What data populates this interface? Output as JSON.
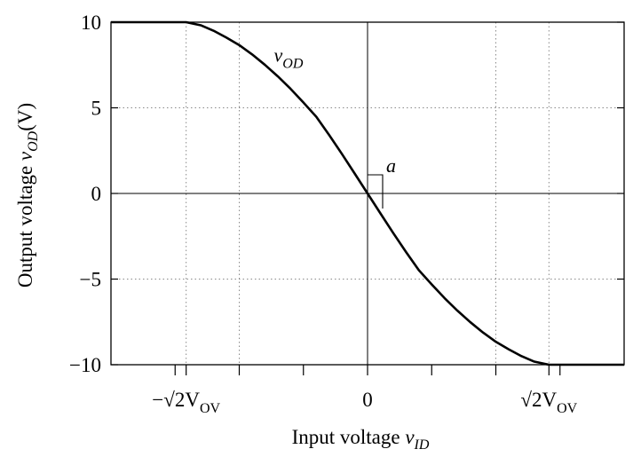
{
  "chart_data": {
    "type": "line",
    "xlabel": {
      "text": "Input voltage ",
      "var": "v",
      "sub": "ID"
    },
    "ylabel": {
      "text": "Output voltage ",
      "var": "v",
      "sub": "OD",
      "unit": "(V)"
    },
    "x_units": "V_OV",
    "xlim": [
      -2.0,
      2.0
    ],
    "ylim": [
      -10,
      10
    ],
    "yticks": [
      {
        "value": 10,
        "label": "10"
      },
      {
        "value": 5,
        "label": "5"
      },
      {
        "value": 0,
        "label": "0"
      },
      {
        "value": -5,
        "label": "−5"
      },
      {
        "value": -10,
        "label": "−10"
      }
    ],
    "xticks": [
      {
        "value": -1.414,
        "label": "−√2V",
        "sub": "OV"
      },
      {
        "value": 0,
        "label": "0"
      },
      {
        "value": 1.414,
        "label": "√2V",
        "sub": "OV"
      }
    ],
    "x_minor_ticks": [
      -1.0,
      1.0
    ],
    "grid": true,
    "series": [
      {
        "name": "v_OD",
        "label_var": "v",
        "label_sub": "OD",
        "x": [
          -2.0,
          -1.6,
          -1.414,
          -1.3,
          -1.2,
          -1.1,
          -1.0,
          -0.9,
          -0.8,
          -0.7,
          -0.6,
          -0.5,
          -0.4,
          -0.3,
          -0.2,
          -0.1,
          0.0,
          0.1,
          0.2,
          0.3,
          0.4,
          0.5,
          0.6,
          0.7,
          0.8,
          0.9,
          1.0,
          1.1,
          1.2,
          1.3,
          1.414,
          1.6,
          2.0
        ],
        "y": [
          10.0,
          10.0,
          10.0,
          9.82,
          9.5,
          9.1,
          8.66,
          8.12,
          7.51,
          6.84,
          6.11,
          5.31,
          4.48,
          3.42,
          2.31,
          1.16,
          0.0,
          -1.16,
          -2.31,
          -3.42,
          -4.48,
          -5.31,
          -6.11,
          -6.84,
          -7.51,
          -8.12,
          -8.66,
          -9.1,
          -9.5,
          -9.82,
          -10.0,
          -10.0,
          -10.0
        ]
      }
    ],
    "annotation": {
      "label": "a",
      "note": "slope marker at origin"
    }
  }
}
